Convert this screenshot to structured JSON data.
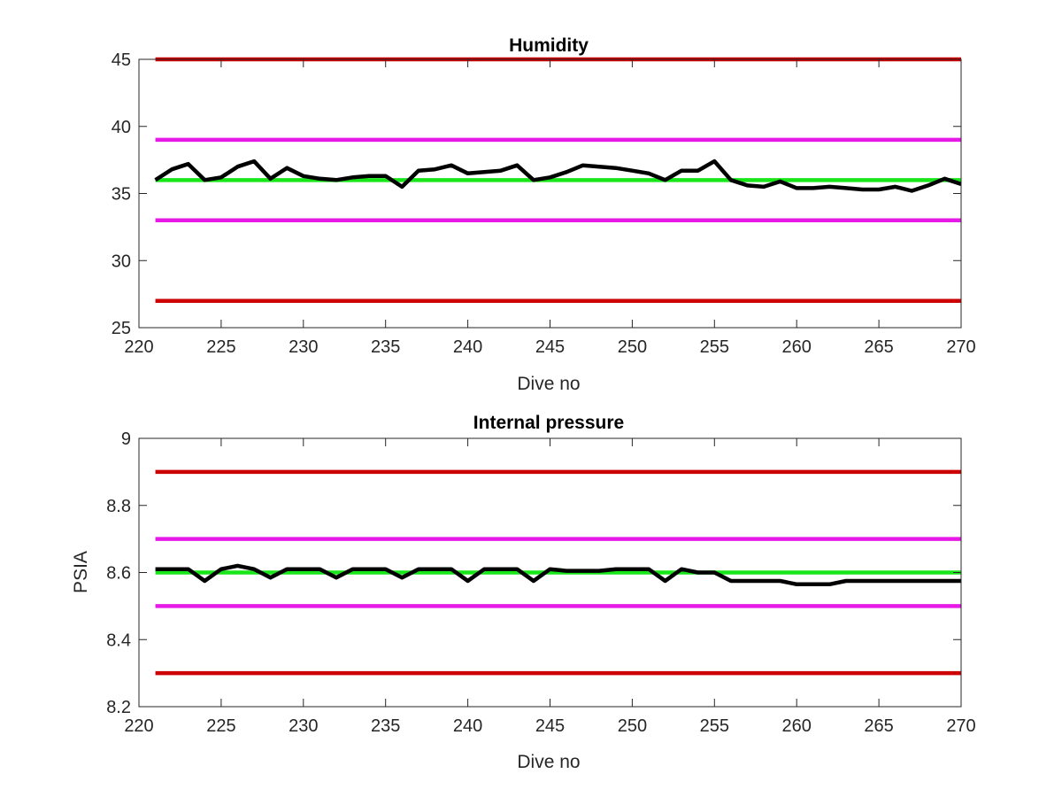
{
  "chart_data": [
    {
      "type": "line",
      "title": "Humidity",
      "xlabel": "Dive no",
      "ylabel": "",
      "xlim": [
        220,
        270
      ],
      "ylim": [
        25,
        45
      ],
      "xticks": [
        220,
        225,
        230,
        235,
        240,
        245,
        250,
        255,
        260,
        265,
        270
      ],
      "yticks": [
        25,
        30,
        35,
        40,
        45
      ],
      "grid": false,
      "reference_lines": [
        {
          "y": 45,
          "color": "#cc0000"
        },
        {
          "y": 39,
          "color": "#e619e6"
        },
        {
          "y": 36,
          "color": "#19e619"
        },
        {
          "y": 33,
          "color": "#e619e6"
        },
        {
          "y": 27,
          "color": "#cc0000"
        }
      ],
      "series": [
        {
          "color": "#000000",
          "x": [
            221,
            222,
            223,
            224,
            225,
            226,
            227,
            228,
            229,
            230,
            231,
            232,
            233,
            234,
            235,
            236,
            237,
            238,
            239,
            240,
            241,
            242,
            243,
            244,
            245,
            246,
            247,
            248,
            249,
            250,
            251,
            252,
            253,
            254,
            255,
            256,
            257,
            258,
            259,
            260,
            261,
            262,
            263,
            264,
            265,
            266,
            267,
            268,
            269,
            270
          ],
          "y": [
            36.0,
            36.8,
            37.2,
            36.0,
            36.2,
            37.0,
            37.4,
            36.1,
            36.9,
            36.3,
            36.1,
            36.0,
            36.2,
            36.3,
            36.3,
            35.5,
            36.7,
            36.8,
            37.1,
            36.5,
            36.6,
            36.7,
            37.1,
            36.0,
            36.2,
            36.6,
            37.1,
            37.0,
            36.9,
            36.7,
            36.5,
            36.0,
            36.7,
            36.7,
            37.4,
            36.0,
            35.6,
            35.5,
            35.9,
            35.4,
            35.4,
            35.5,
            35.4,
            35.3,
            35.3,
            35.5,
            35.2,
            35.6,
            36.1,
            35.7
          ]
        }
      ]
    },
    {
      "type": "line",
      "title": "Internal pressure",
      "xlabel": "Dive no",
      "ylabel": "PSIA",
      "xlim": [
        220,
        270
      ],
      "ylim": [
        8.2,
        9.0
      ],
      "xticks": [
        220,
        225,
        230,
        235,
        240,
        245,
        250,
        255,
        260,
        265,
        270
      ],
      "yticks": [
        8.2,
        8.4,
        8.6,
        8.8,
        9.0
      ],
      "ytick_labels": [
        "8.2",
        "8.4",
        "8.6",
        "8.8",
        "9"
      ],
      "grid": false,
      "reference_lines": [
        {
          "y": 8.9,
          "color": "#cc0000"
        },
        {
          "y": 8.7,
          "color": "#e619e6"
        },
        {
          "y": 8.6,
          "color": "#19e619"
        },
        {
          "y": 8.5,
          "color": "#e619e6"
        },
        {
          "y": 8.3,
          "color": "#cc0000"
        }
      ],
      "series": [
        {
          "color": "#000000",
          "x": [
            221,
            222,
            223,
            224,
            225,
            226,
            227,
            228,
            229,
            230,
            231,
            232,
            233,
            234,
            235,
            236,
            237,
            238,
            239,
            240,
            241,
            242,
            243,
            244,
            245,
            246,
            247,
            248,
            249,
            250,
            251,
            252,
            253,
            254,
            255,
            256,
            257,
            258,
            259,
            260,
            261,
            262,
            263,
            264,
            265,
            266,
            267,
            268,
            269,
            270
          ],
          "y": [
            8.61,
            8.61,
            8.61,
            8.575,
            8.61,
            8.62,
            8.61,
            8.585,
            8.61,
            8.61,
            8.61,
            8.585,
            8.61,
            8.61,
            8.61,
            8.585,
            8.61,
            8.61,
            8.61,
            8.575,
            8.61,
            8.61,
            8.61,
            8.575,
            8.61,
            8.605,
            8.605,
            8.605,
            8.61,
            8.61,
            8.61,
            8.575,
            8.61,
            8.6,
            8.6,
            8.575,
            8.575,
            8.575,
            8.575,
            8.565,
            8.565,
            8.565,
            8.575,
            8.575,
            8.575,
            8.575,
            8.575,
            8.575,
            8.575,
            8.575
          ]
        }
      ]
    }
  ]
}
